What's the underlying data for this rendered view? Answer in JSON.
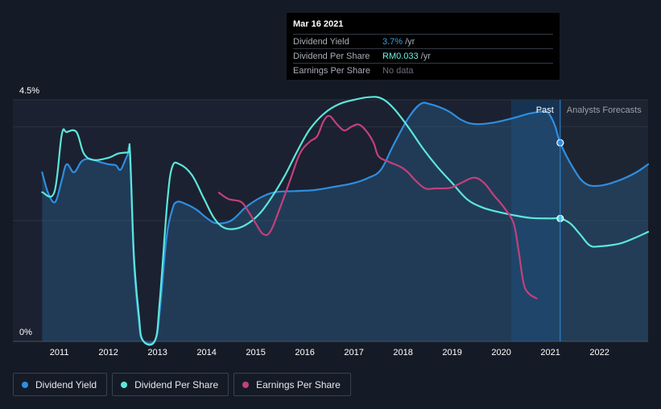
{
  "tooltip": {
    "date": "Mar 16 2021",
    "rows": [
      {
        "name": "Dividend Yield",
        "value": "3.7%",
        "unit": "/yr",
        "color": "#3aa0ea"
      },
      {
        "name": "Dividend Per Share",
        "value": "RM0.033",
        "unit": "/yr",
        "color": "#6ff0e0"
      },
      {
        "name": "Earnings Per Share",
        "value": "No data",
        "unit": "",
        "color": "#6b7078"
      }
    ]
  },
  "regions": {
    "past": "Past",
    "forecast": "Analysts Forecasts"
  },
  "legend": [
    {
      "label": "Dividend Yield",
      "color": "#2f8ee0"
    },
    {
      "label": "Dividend Per Share",
      "color": "#5ce6dc"
    },
    {
      "label": "Earnings Per Share",
      "color": "#c2407e"
    }
  ],
  "chart_data": {
    "type": "line",
    "y_tick_labels": [
      "4.5%",
      "0%"
    ],
    "ylim": [
      0,
      4.5
    ],
    "x_tick_labels": [
      "2011",
      "2012",
      "2013",
      "2014",
      "2015",
      "2016",
      "2017",
      "2018",
      "2019",
      "2020",
      "2021",
      "2022"
    ],
    "xlim": [
      2010.58,
      2022.99
    ],
    "divider_x": 2021.2,
    "forecast_shade_start": 2020.2,
    "series": [
      {
        "name": "Dividend Yield",
        "color": "#2f8ee0",
        "fill": true,
        "points": [
          [
            2010.65,
            3.15
          ],
          [
            2010.78,
            2.75
          ],
          [
            2010.92,
            2.6
          ],
          [
            2011.05,
            3.0
          ],
          [
            2011.15,
            3.3
          ],
          [
            2011.3,
            3.15
          ],
          [
            2011.45,
            3.35
          ],
          [
            2011.6,
            3.4
          ],
          [
            2011.8,
            3.35
          ],
          [
            2012.0,
            3.3
          ],
          [
            2012.15,
            3.28
          ],
          [
            2012.25,
            3.2
          ],
          [
            2012.38,
            3.45
          ],
          [
            2012.44,
            3.45
          ],
          [
            2012.52,
            1.5
          ],
          [
            2012.62,
            0.4
          ],
          [
            2012.7,
            0.02
          ],
          [
            2012.95,
            0.02
          ],
          [
            2013.05,
            0.6
          ],
          [
            2013.18,
            1.9
          ],
          [
            2013.3,
            2.45
          ],
          [
            2013.4,
            2.6
          ],
          [
            2013.6,
            2.55
          ],
          [
            2013.8,
            2.45
          ],
          [
            2014.0,
            2.3
          ],
          [
            2014.2,
            2.2
          ],
          [
            2014.5,
            2.25
          ],
          [
            2014.8,
            2.5
          ],
          [
            2015.1,
            2.68
          ],
          [
            2015.4,
            2.78
          ],
          [
            2015.8,
            2.8
          ],
          [
            2016.2,
            2.82
          ],
          [
            2016.6,
            2.88
          ],
          [
            2017.0,
            2.95
          ],
          [
            2017.3,
            3.05
          ],
          [
            2017.55,
            3.2
          ],
          [
            2017.8,
            3.65
          ],
          [
            2018.1,
            4.15
          ],
          [
            2018.35,
            4.42
          ],
          [
            2018.55,
            4.42
          ],
          [
            2018.9,
            4.3
          ],
          [
            2019.2,
            4.12
          ],
          [
            2019.45,
            4.05
          ],
          [
            2019.8,
            4.07
          ],
          [
            2020.2,
            4.15
          ],
          [
            2020.6,
            4.25
          ],
          [
            2020.9,
            4.28
          ],
          [
            2021.0,
            4.2
          ],
          [
            2021.1,
            4.0
          ],
          [
            2021.2,
            3.7
          ],
          [
            2021.45,
            3.25
          ],
          [
            2021.7,
            2.95
          ],
          [
            2022.0,
            2.9
          ],
          [
            2022.4,
            3.0
          ],
          [
            2022.75,
            3.15
          ],
          [
            2022.99,
            3.3
          ]
        ]
      },
      {
        "name": "Dividend Per Share",
        "color": "#5ce6dc",
        "fill": false,
        "points": [
          [
            2010.65,
            2.78
          ],
          [
            2010.9,
            2.78
          ],
          [
            2011.05,
            3.85
          ],
          [
            2011.15,
            3.9
          ],
          [
            2011.35,
            3.9
          ],
          [
            2011.5,
            3.5
          ],
          [
            2011.7,
            3.38
          ],
          [
            2012.0,
            3.42
          ],
          [
            2012.2,
            3.5
          ],
          [
            2012.4,
            3.52
          ],
          [
            2012.44,
            3.52
          ],
          [
            2012.52,
            1.6
          ],
          [
            2012.62,
            0.5
          ],
          [
            2012.7,
            0.02
          ],
          [
            2012.95,
            0.02
          ],
          [
            2013.05,
            0.8
          ],
          [
            2013.2,
            2.6
          ],
          [
            2013.3,
            3.25
          ],
          [
            2013.45,
            3.3
          ],
          [
            2013.7,
            3.1
          ],
          [
            2013.95,
            2.65
          ],
          [
            2014.15,
            2.3
          ],
          [
            2014.35,
            2.12
          ],
          [
            2014.6,
            2.1
          ],
          [
            2014.85,
            2.2
          ],
          [
            2015.1,
            2.4
          ],
          [
            2015.35,
            2.72
          ],
          [
            2015.6,
            3.1
          ],
          [
            2015.85,
            3.55
          ],
          [
            2016.1,
            3.95
          ],
          [
            2016.4,
            4.25
          ],
          [
            2016.7,
            4.42
          ],
          [
            2017.0,
            4.5
          ],
          [
            2017.3,
            4.55
          ],
          [
            2017.55,
            4.53
          ],
          [
            2017.8,
            4.35
          ],
          [
            2018.1,
            4.0
          ],
          [
            2018.4,
            3.6
          ],
          [
            2018.7,
            3.25
          ],
          [
            2019.0,
            2.95
          ],
          [
            2019.3,
            2.65
          ],
          [
            2019.6,
            2.5
          ],
          [
            2019.9,
            2.42
          ],
          [
            2020.2,
            2.36
          ],
          [
            2020.6,
            2.3
          ],
          [
            2021.0,
            2.29
          ],
          [
            2021.2,
            2.29
          ],
          [
            2021.4,
            2.2
          ],
          [
            2021.6,
            2.0
          ],
          [
            2021.8,
            1.79
          ],
          [
            2022.0,
            1.77
          ],
          [
            2022.4,
            1.82
          ],
          [
            2022.7,
            1.92
          ],
          [
            2022.99,
            2.04
          ]
        ]
      },
      {
        "name": "Earnings Per Share",
        "color": "#c2407e",
        "fill": false,
        "points": [
          [
            2014.25,
            2.77
          ],
          [
            2014.45,
            2.65
          ],
          [
            2014.7,
            2.6
          ],
          [
            2014.85,
            2.42
          ],
          [
            2015.0,
            2.2
          ],
          [
            2015.15,
            2.0
          ],
          [
            2015.3,
            2.05
          ],
          [
            2015.5,
            2.5
          ],
          [
            2015.7,
            3.0
          ],
          [
            2015.9,
            3.5
          ],
          [
            2016.1,
            3.72
          ],
          [
            2016.25,
            3.82
          ],
          [
            2016.38,
            4.1
          ],
          [
            2016.5,
            4.2
          ],
          [
            2016.65,
            4.05
          ],
          [
            2016.8,
            3.93
          ],
          [
            2016.95,
            4.0
          ],
          [
            2017.1,
            4.04
          ],
          [
            2017.25,
            3.92
          ],
          [
            2017.4,
            3.7
          ],
          [
            2017.5,
            3.45
          ],
          [
            2017.7,
            3.35
          ],
          [
            2017.95,
            3.25
          ],
          [
            2018.1,
            3.15
          ],
          [
            2018.25,
            3.0
          ],
          [
            2018.45,
            2.85
          ],
          [
            2018.65,
            2.85
          ],
          [
            2018.85,
            2.85
          ],
          [
            2019.0,
            2.87
          ],
          [
            2019.2,
            2.96
          ],
          [
            2019.45,
            3.05
          ],
          [
            2019.65,
            2.95
          ],
          [
            2019.85,
            2.72
          ],
          [
            2020.05,
            2.5
          ],
          [
            2020.25,
            2.2
          ],
          [
            2020.35,
            1.7
          ],
          [
            2020.45,
            1.1
          ],
          [
            2020.55,
            0.9
          ],
          [
            2020.72,
            0.8
          ]
        ]
      }
    ],
    "markers": [
      {
        "series": "Dividend Yield",
        "x": 2021.2,
        "y": 3.7
      },
      {
        "series": "Dividend Per Share",
        "x": 2021.2,
        "y": 2.29
      }
    ]
  }
}
